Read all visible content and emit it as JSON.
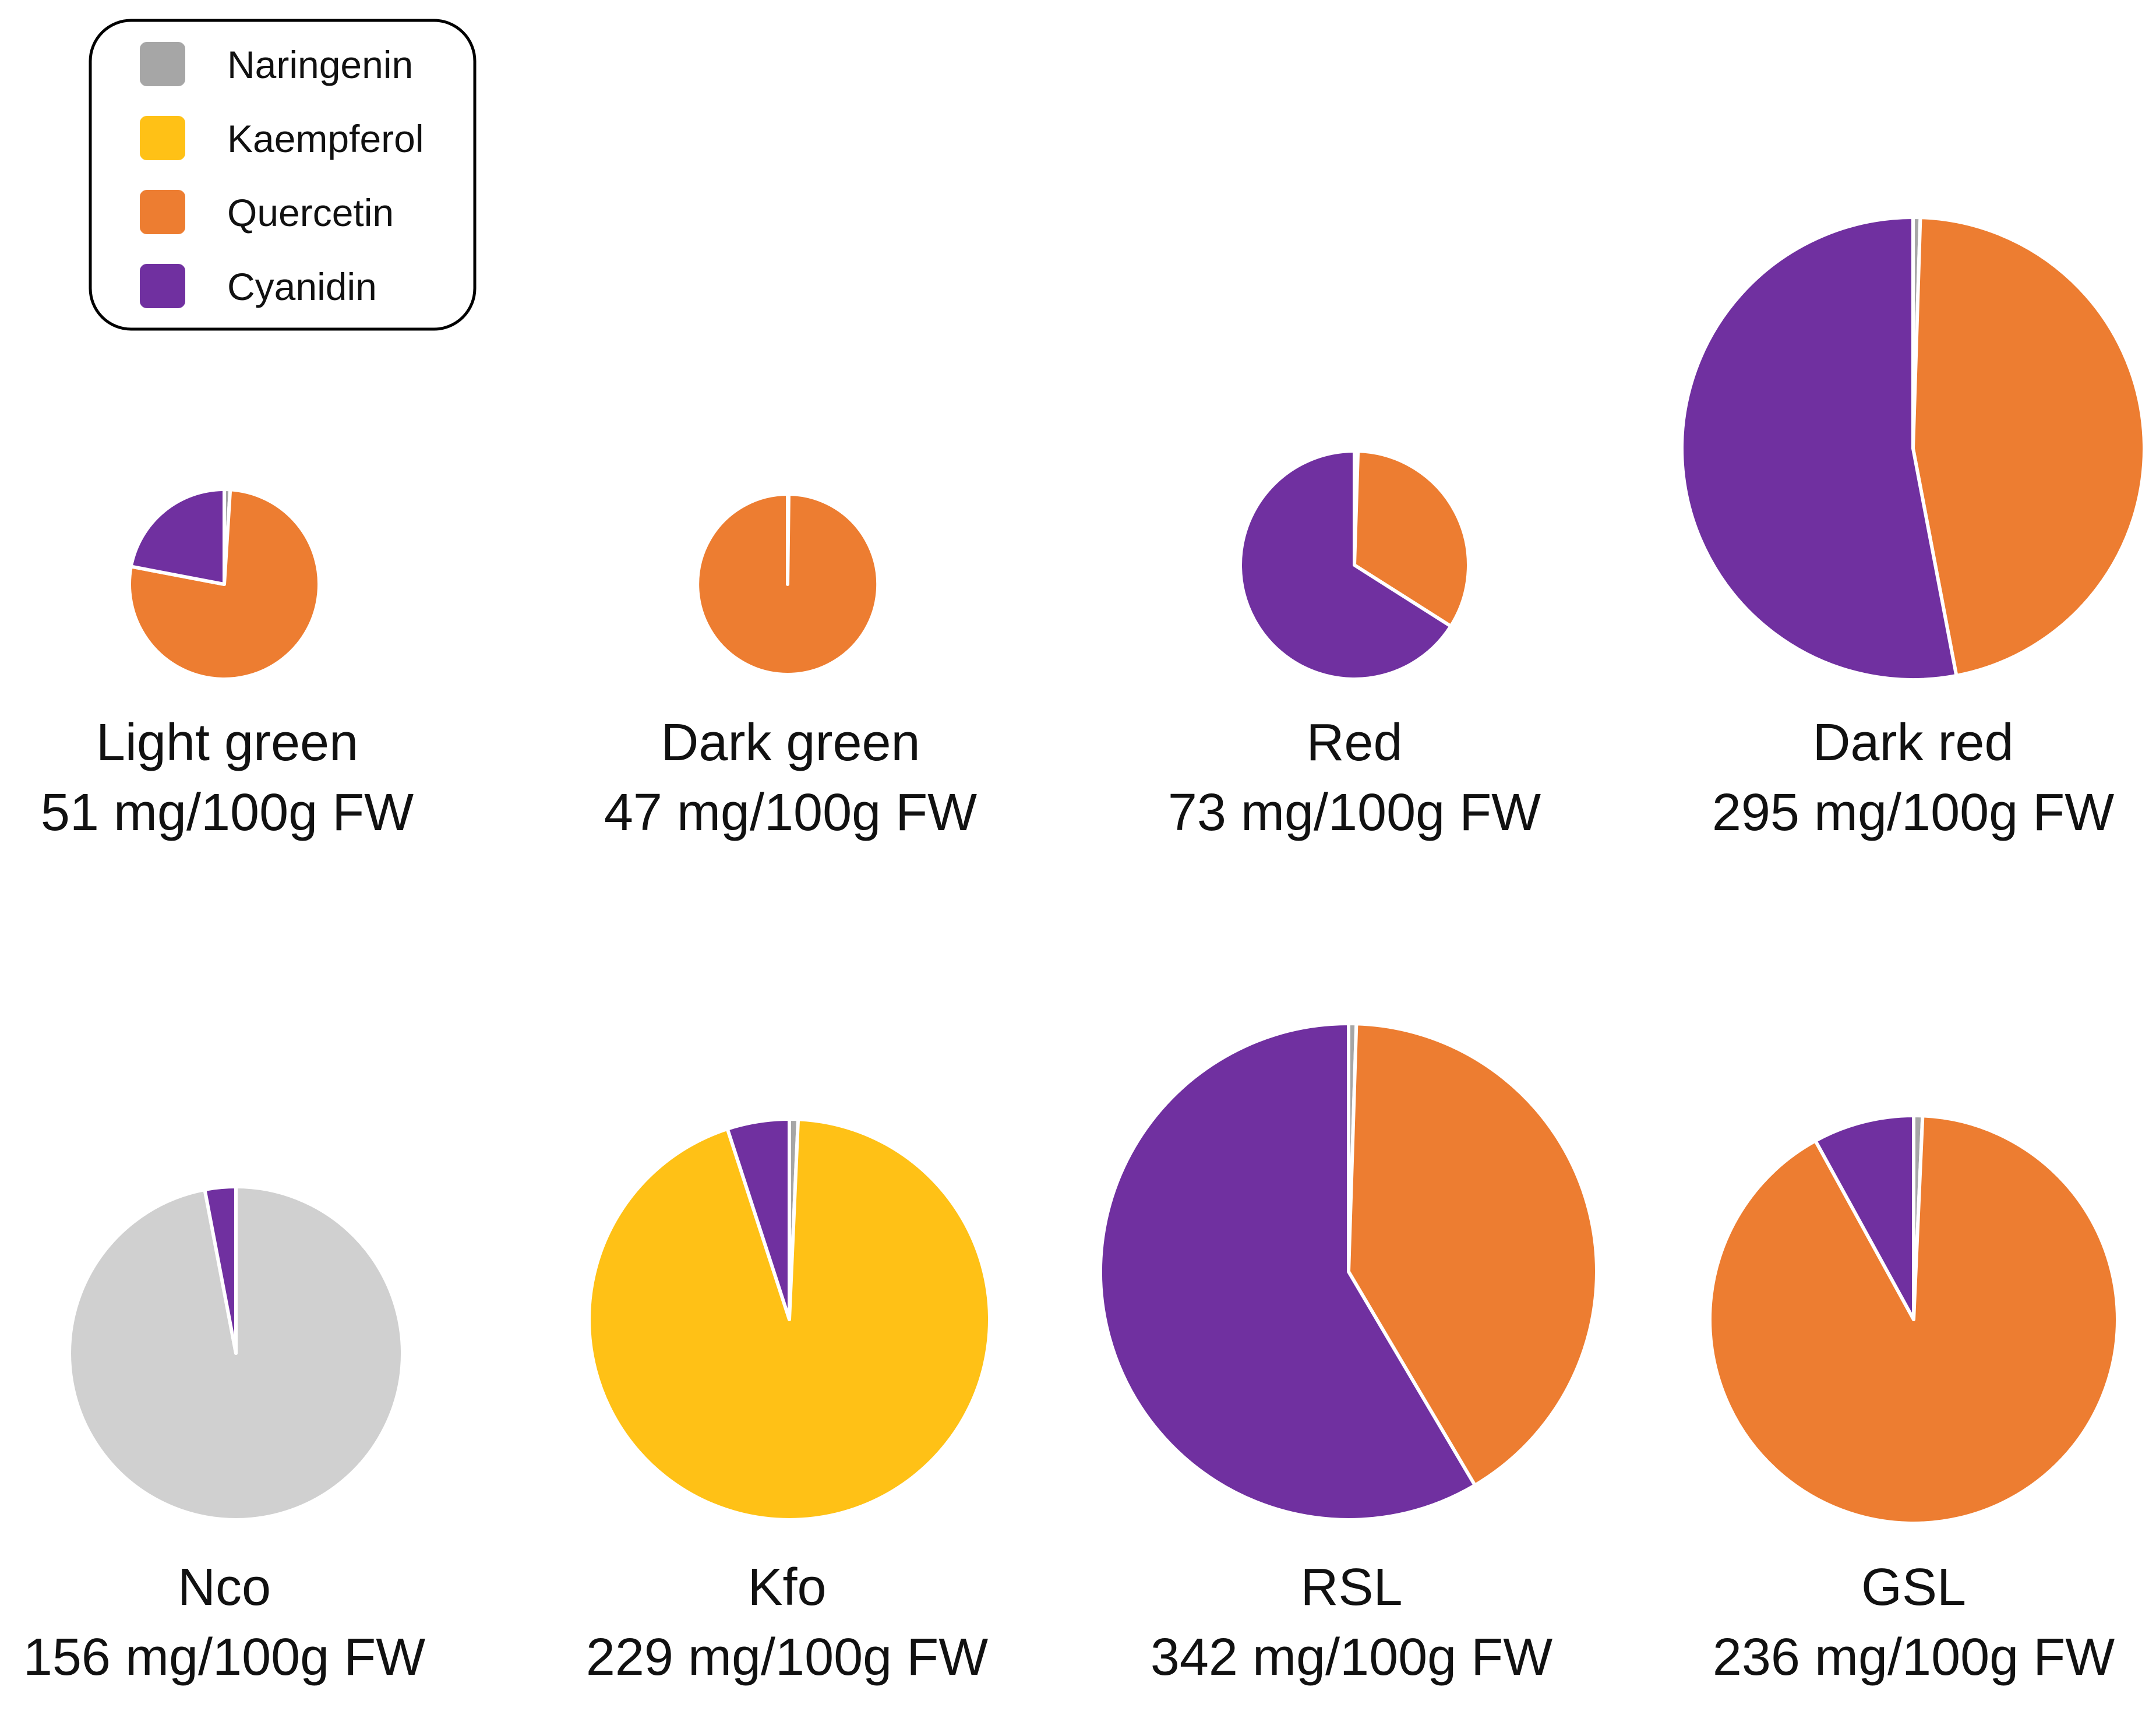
{
  "chart_data": {
    "type": "pie",
    "legend": {
      "placement": "top-left",
      "entries": [
        {
          "name": "Naringenin",
          "color": "#A6A6A6"
        },
        {
          "name": "Kaempferol",
          "color": "#FFC116"
        },
        {
          "name": "Quercetin",
          "color": "#ED7D31"
        },
        {
          "name": "Cyanidin",
          "color": "#7030A0"
        }
      ]
    },
    "pies": [
      {
        "label": "Light green",
        "total": "51 mg/100g FW",
        "total_value": 51,
        "slices": [
          {
            "name": "Naringenin",
            "value": 1,
            "color": "#A6A6A6"
          },
          {
            "name": "Quercetin",
            "value": 77,
            "color": "#ED7D31"
          },
          {
            "name": "Cyanidin",
            "value": 22,
            "color": "#7030A0"
          }
        ]
      },
      {
        "label": "Dark green",
        "total": "47 mg/100g FW",
        "total_value": 47,
        "slices": [
          {
            "name": "Naringenin",
            "value": 0.2,
            "color": "#A6A6A6"
          },
          {
            "name": "Quercetin",
            "value": 99.8,
            "color": "#ED7D31"
          }
        ]
      },
      {
        "label": "Red",
        "total": "73 mg/100g FW",
        "total_value": 73,
        "slices": [
          {
            "name": "Naringenin",
            "value": 0.5,
            "color": "#A6A6A6"
          },
          {
            "name": "Quercetin",
            "value": 33.5,
            "color": "#ED7D31"
          },
          {
            "name": "Cyanidin",
            "value": 66,
            "color": "#7030A0"
          }
        ]
      },
      {
        "label": "Dark red",
        "total": "295 mg/100g FW",
        "total_value": 295,
        "slices": [
          {
            "name": "Naringenin",
            "value": 0.5,
            "color": "#A6A6A6"
          },
          {
            "name": "Quercetin",
            "value": 46.5,
            "color": "#ED7D31"
          },
          {
            "name": "Cyanidin",
            "value": 53,
            "color": "#7030A0"
          }
        ]
      },
      {
        "label": "Nco",
        "total": "156 mg/100g FW",
        "total_value": 156,
        "slices": [
          {
            "name": "Naringenin",
            "value": 97,
            "color": "#D0D0D0"
          },
          {
            "name": "Cyanidin",
            "value": 3,
            "color": "#7030A0"
          }
        ]
      },
      {
        "label": "Kfo",
        "total": "229 mg/100g FW",
        "total_value": 229,
        "slices": [
          {
            "name": "Naringenin",
            "value": 0.7,
            "color": "#A6A6A6"
          },
          {
            "name": "Kaempferol",
            "value": 94.3,
            "color": "#FFC116"
          },
          {
            "name": "Cyanidin",
            "value": 5,
            "color": "#7030A0"
          }
        ]
      },
      {
        "label": "RSL",
        "total": "342 mg/100g FW",
        "total_value": 342,
        "slices": [
          {
            "name": "Naringenin",
            "value": 0.5,
            "color": "#A6A6A6"
          },
          {
            "name": "Quercetin",
            "value": 41,
            "color": "#ED7D31"
          },
          {
            "name": "Cyanidin",
            "value": 58.5,
            "color": "#7030A0"
          }
        ]
      },
      {
        "label": "GSL",
        "total": "236 mg/100g FW",
        "total_value": 236,
        "slices": [
          {
            "name": "Naringenin",
            "value": 0.7,
            "color": "#A6A6A6"
          },
          {
            "name": "Quercetin",
            "value": 91.3,
            "color": "#ED7D31"
          },
          {
            "name": "Cyanidin",
            "value": 8,
            "color": "#7030A0"
          }
        ]
      }
    ]
  }
}
